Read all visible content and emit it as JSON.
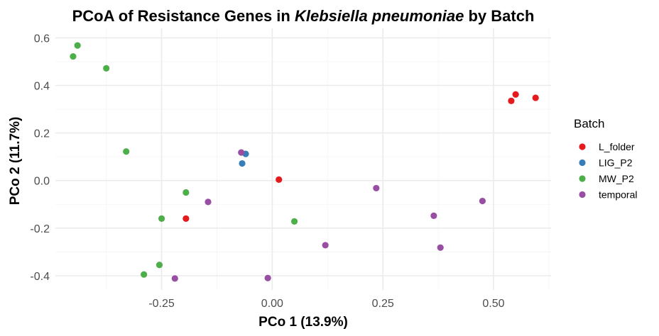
{
  "chart_data": {
    "type": "scatter",
    "title_parts": {
      "prefix": "PCoA of Resistance Genes in ",
      "italic": "Klebsiella pneumoniae",
      "suffix": " by Batch"
    },
    "xlabel": "PCo 1 (13.9%)",
    "ylabel": "PCo 2 (11.7%)",
    "xlim": [
      -0.49,
      0.63
    ],
    "ylim": [
      -0.46,
      0.64
    ],
    "x_ticks": [
      -0.25,
      0.0,
      0.25,
      0.5
    ],
    "x_tick_labels": [
      "-0.25",
      "0.00",
      "0.25",
      "0.50"
    ],
    "y_ticks": [
      -0.4,
      -0.2,
      0.0,
      0.2,
      0.4,
      0.6
    ],
    "y_tick_labels": [
      "-0.4",
      "-0.2",
      "0.0",
      "0.2",
      "0.4",
      "0.6"
    ],
    "grid": true,
    "legend": {
      "title": "Batch",
      "position": "right"
    },
    "series": [
      {
        "name": "L_folder",
        "color": "#e41a1c",
        "points": [
          [
            0.54,
            0.335
          ],
          [
            0.55,
            0.362
          ],
          [
            0.595,
            0.348
          ],
          [
            0.015,
            0.004
          ],
          [
            -0.195,
            -0.16
          ]
        ]
      },
      {
        "name": "LIG_P2",
        "color": "#377eb8",
        "points": [
          [
            -0.06,
            0.112
          ],
          [
            -0.068,
            0.072
          ]
        ]
      },
      {
        "name": "MW_P2",
        "color": "#4daf4a",
        "points": [
          [
            -0.44,
            0.568
          ],
          [
            -0.45,
            0.522
          ],
          [
            -0.375,
            0.472
          ],
          [
            -0.33,
            0.122
          ],
          [
            -0.195,
            -0.05
          ],
          [
            -0.25,
            -0.16
          ],
          [
            0.05,
            -0.172
          ],
          [
            -0.255,
            -0.355
          ],
          [
            -0.29,
            -0.395
          ]
        ]
      },
      {
        "name": "temporal",
        "color": "#984ea3",
        "points": [
          [
            -0.07,
            0.118
          ],
          [
            -0.145,
            -0.09
          ],
          [
            0.235,
            -0.032
          ],
          [
            0.365,
            -0.148
          ],
          [
            0.475,
            -0.086
          ],
          [
            0.12,
            -0.272
          ],
          [
            0.38,
            -0.282
          ],
          [
            -0.22,
            -0.412
          ],
          [
            -0.01,
            -0.41
          ]
        ]
      }
    ]
  }
}
